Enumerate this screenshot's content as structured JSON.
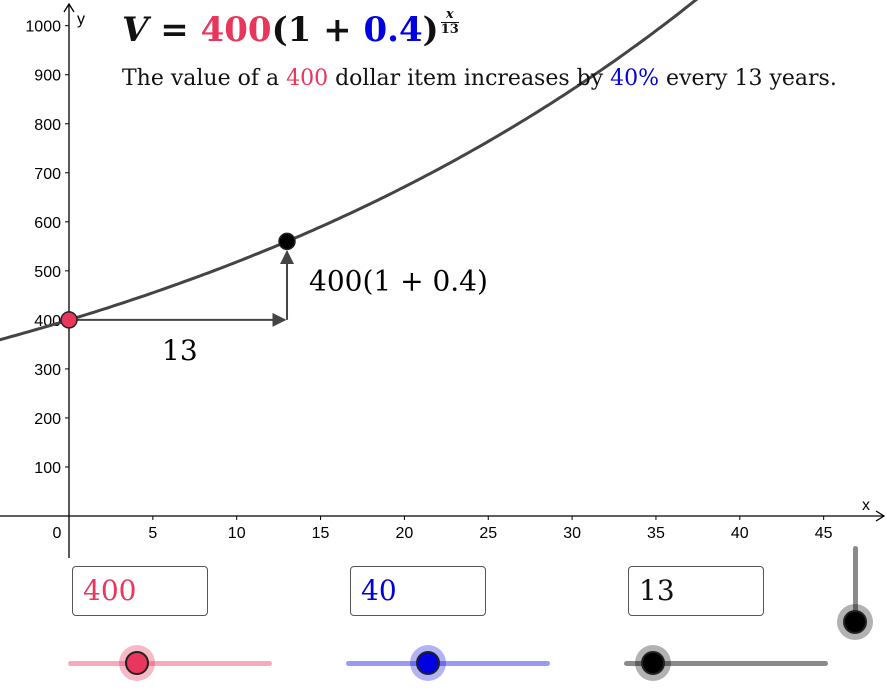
{
  "formula": {
    "lhs": "V",
    "equals": "=",
    "principal": "400",
    "open": "(1 + ",
    "rate": "0.4",
    "close": ")",
    "exp_num": "x",
    "exp_den": "13"
  },
  "sentence": {
    "part1": "The value of a ",
    "principal": "400",
    "part2": " dollar item increases by ",
    "percent": "40%",
    "part3": " every 13 years."
  },
  "graph_labels": {
    "horizontal_run": "13",
    "vertical_rise": "400(1 + 0.4)"
  },
  "inputs": {
    "principal": "400",
    "rate_percent": "40",
    "period": "13"
  },
  "sliders": {
    "principal": {
      "fraction": 0.34
    },
    "rate": {
      "fraction": 0.4
    },
    "period": {
      "fraction": 0.14
    },
    "vertical": {
      "fraction": 0.0
    }
  },
  "colors": {
    "principal": "#e8365d",
    "rate": "#0000e0",
    "curve": "#444444",
    "axis": "#000000"
  },
  "chart_data": {
    "type": "line",
    "function": "400*(1+0.4)^(x/13)",
    "xlabel": "x",
    "ylabel": "y",
    "xlim": [
      -4,
      48
    ],
    "ylim": [
      0,
      1050
    ],
    "x_ticks": [
      "0",
      "5",
      "10",
      "15",
      "20",
      "25",
      "30",
      "35",
      "40",
      "45"
    ],
    "y_ticks": [
      "100",
      "200",
      "300",
      "400",
      "500",
      "600",
      "700",
      "800",
      "900",
      "1000"
    ],
    "points": [
      {
        "x": 0,
        "y": 400,
        "color": "#e8365d"
      },
      {
        "x": 13,
        "y": 560,
        "color": "#000000"
      }
    ]
  }
}
